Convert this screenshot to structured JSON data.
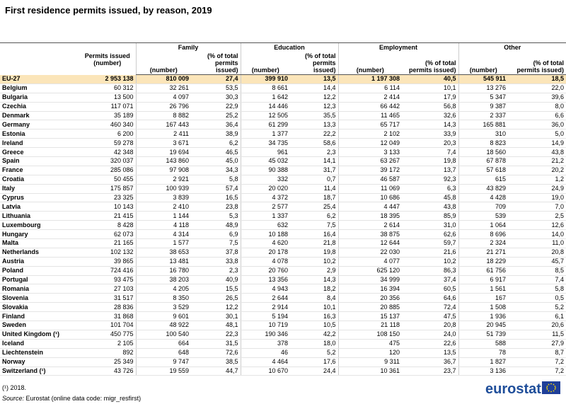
{
  "title": "First residence permits issued, by reason, 2019",
  "header": {
    "permits": "Permits issued (number)",
    "groups": [
      "Family",
      "Education",
      "Employment",
      "Other"
    ],
    "number": "(number)",
    "share": "(% of total permits issued)"
  },
  "rows": [
    {
      "label": "EU-27",
      "cells": [
        "2 953 138",
        "810 009",
        "27,4",
        "399 910",
        "13,5",
        "1 197 308",
        "40,5",
        "545 911",
        "18,5"
      ]
    },
    {
      "label": "Belgium",
      "cells": [
        "60 312",
        "32 261",
        "53,5",
        "8 661",
        "14,4",
        "6 114",
        "10,1",
        "13 276",
        "22,0"
      ]
    },
    {
      "label": "Bulgaria",
      "cells": [
        "13 500",
        "4 097",
        "30,3",
        "1 642",
        "12,2",
        "2 414",
        "17,9",
        "5 347",
        "39,6"
      ]
    },
    {
      "label": "Czechia",
      "cells": [
        "117 071",
        "26 796",
        "22,9",
        "14 446",
        "12,3",
        "66 442",
        "56,8",
        "9 387",
        "8,0"
      ]
    },
    {
      "label": "Denmark",
      "cells": [
        "35 189",
        "8 882",
        "25,2",
        "12 505",
        "35,5",
        "11 465",
        "32,6",
        "2 337",
        "6,6"
      ]
    },
    {
      "label": "Germany",
      "cells": [
        "460 340",
        "167 443",
        "36,4",
        "61 299",
        "13,3",
        "65 717",
        "14,3",
        "165 881",
        "36,0"
      ]
    },
    {
      "label": "Estonia",
      "cells": [
        "6 200",
        "2 411",
        "38,9",
        "1 377",
        "22,2",
        "2 102",
        "33,9",
        "310",
        "5,0"
      ]
    },
    {
      "label": "Ireland",
      "cells": [
        "59 278",
        "3 671",
        "6,2",
        "34 735",
        "58,6",
        "12 049",
        "20,3",
        "8 823",
        "14,9"
      ]
    },
    {
      "label": "Greece",
      "cells": [
        "42 348",
        "19 694",
        "46,5",
        "961",
        "2,3",
        "3 133",
        "7,4",
        "18 560",
        "43,8"
      ]
    },
    {
      "label": "Spain",
      "cells": [
        "320 037",
        "143 860",
        "45,0",
        "45 032",
        "14,1",
        "63 267",
        "19,8",
        "67 878",
        "21,2"
      ]
    },
    {
      "label": "France",
      "cells": [
        "285 086",
        "97 908",
        "34,3",
        "90 388",
        "31,7",
        "39 172",
        "13,7",
        "57 618",
        "20,2"
      ]
    },
    {
      "label": "Croatia",
      "cells": [
        "50 455",
        "2 921",
        "5,8",
        "332",
        "0,7",
        "46 587",
        "92,3",
        "615",
        "1,2"
      ]
    },
    {
      "label": "Italy",
      "cells": [
        "175 857",
        "100 939",
        "57,4",
        "20 020",
        "11,4",
        "11 069",
        "6,3",
        "43 829",
        "24,9"
      ]
    },
    {
      "label": "Cyprus",
      "cells": [
        "23 325",
        "3 839",
        "16,5",
        "4 372",
        "18,7",
        "10 686",
        "45,8",
        "4 428",
        "19,0"
      ]
    },
    {
      "label": "Latvia",
      "cells": [
        "10 143",
        "2 410",
        "23,8",
        "2 577",
        "25,4",
        "4 447",
        "43,8",
        "709",
        "7,0"
      ]
    },
    {
      "label": "Lithuania",
      "cells": [
        "21 415",
        "1 144",
        "5,3",
        "1 337",
        "6,2",
        "18 395",
        "85,9",
        "539",
        "2,5"
      ]
    },
    {
      "label": "Luxembourg",
      "cells": [
        "8 428",
        "4 118",
        "48,9",
        "632",
        "7,5",
        "2 614",
        "31,0",
        "1 064",
        "12,6"
      ]
    },
    {
      "label": "Hungary",
      "cells": [
        "62 073",
        "4 314",
        "6,9",
        "10 188",
        "16,4",
        "38 875",
        "62,6",
        "8 696",
        "14,0"
      ]
    },
    {
      "label": "Malta",
      "cells": [
        "21 165",
        "1 577",
        "7,5",
        "4 620",
        "21,8",
        "12 644",
        "59,7",
        "2 324",
        "11,0"
      ]
    },
    {
      "label": "Netherlands",
      "cells": [
        "102 132",
        "38 653",
        "37,8",
        "20 178",
        "19,8",
        "22 030",
        "21,6",
        "21 271",
        "20,8"
      ]
    },
    {
      "label": "Austria",
      "cells": [
        "39 865",
        "13 481",
        "33,8",
        "4 078",
        "10,2",
        "4 077",
        "10,2",
        "18 229",
        "45,7"
      ]
    },
    {
      "label": "Poland",
      "cells": [
        "724 416",
        "16 780",
        "2,3",
        "20 760",
        "2,9",
        "625 120",
        "86,3",
        "61 756",
        "8,5"
      ]
    },
    {
      "label": "Portugal",
      "cells": [
        "93 475",
        "38 203",
        "40,9",
        "13 356",
        "14,3",
        "34 999",
        "37,4",
        "6 917",
        "7,4"
      ]
    },
    {
      "label": "Romania",
      "cells": [
        "27 103",
        "4 205",
        "15,5",
        "4 943",
        "18,2",
        "16 394",
        "60,5",
        "1 561",
        "5,8"
      ]
    },
    {
      "label": "Slovenia",
      "cells": [
        "31 517",
        "8 350",
        "26,5",
        "2 644",
        "8,4",
        "20 356",
        "64,6",
        "167",
        "0,5"
      ]
    },
    {
      "label": "Slovakia",
      "cells": [
        "28 836",
        "3 529",
        "12,2",
        "2 914",
        "10,1",
        "20 885",
        "72,4",
        "1 508",
        "5,2"
      ]
    },
    {
      "label": "Finland",
      "cells": [
        "31 868",
        "9 601",
        "30,1",
        "5 194",
        "16,3",
        "15 137",
        "47,5",
        "1 936",
        "6,1"
      ]
    },
    {
      "label": "Sweden",
      "cells": [
        "101 704",
        "48 922",
        "48,1",
        "10 719",
        "10,5",
        "21 118",
        "20,8",
        "20 945",
        "20,6"
      ]
    },
    {
      "label": "United Kingdom (¹)",
      "cells": [
        "450 775",
        "100 540",
        "22,3",
        "190 346",
        "42,2",
        "108 150",
        "24,0",
        "51 739",
        "11,5"
      ]
    },
    {
      "label": "Iceland",
      "cells": [
        "2 105",
        "664",
        "31,5",
        "378",
        "18,0",
        "475",
        "22,6",
        "588",
        "27,9"
      ]
    },
    {
      "label": "Liechtenstein",
      "cells": [
        "892",
        "648",
        "72,6",
        "46",
        "5,2",
        "120",
        "13,5",
        "78",
        "8,7"
      ]
    },
    {
      "label": "Norway",
      "cells": [
        "25 349",
        "9 747",
        "38,5",
        "4 464",
        "17,6",
        "9 311",
        "36,7",
        "1 827",
        "7,2"
      ]
    },
    {
      "label": "Switzerland (¹)",
      "cells": [
        "43 726",
        "19 559",
        "44,7",
        "10 670",
        "24,4",
        "10 361",
        "23,7",
        "3 136",
        "7,2"
      ]
    }
  ],
  "footnote": "(¹) 2018.",
  "source_label": "Source:",
  "source": "Eurostat (online data code: migr_resfirst)",
  "logo": "eurostat"
}
